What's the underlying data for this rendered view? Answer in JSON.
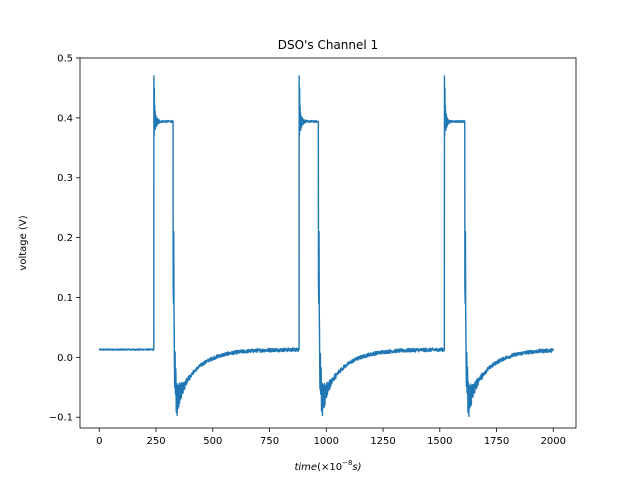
{
  "chart_data": {
    "type": "line",
    "title": "DSO's Channel 1",
    "xlabel_main": "time",
    "xlabel_unit": "(×10",
    "xlabel_exp": "−8",
    "xlabel_unit_end": "s)",
    "ylabel": "voltage (V)",
    "xlim": [
      -85,
      2100
    ],
    "ylim": [
      -0.118,
      0.5
    ],
    "xticks": [
      0,
      250,
      500,
      750,
      1000,
      1250,
      1500,
      1750,
      2000
    ],
    "yticks": [
      -0.1,
      0.0,
      0.1,
      0.2,
      0.3,
      0.4,
      0.5
    ],
    "ytick_labels": [
      "−0.1",
      "0.0",
      "0.1",
      "0.2",
      "0.3",
      "0.4",
      "0.5"
    ],
    "grid": false,
    "series": [
      {
        "color": "#1f77b4",
        "pulses": [
          {
            "rise": 240,
            "fall": 325
          },
          {
            "rise": 880,
            "fall": 965
          },
          {
            "rise": 1520,
            "fall": 1610
          }
        ],
        "baseline": 0.013,
        "high": 0.394,
        "peak": 0.47,
        "undershoot": -0.085,
        "x_end": 2000
      }
    ]
  }
}
